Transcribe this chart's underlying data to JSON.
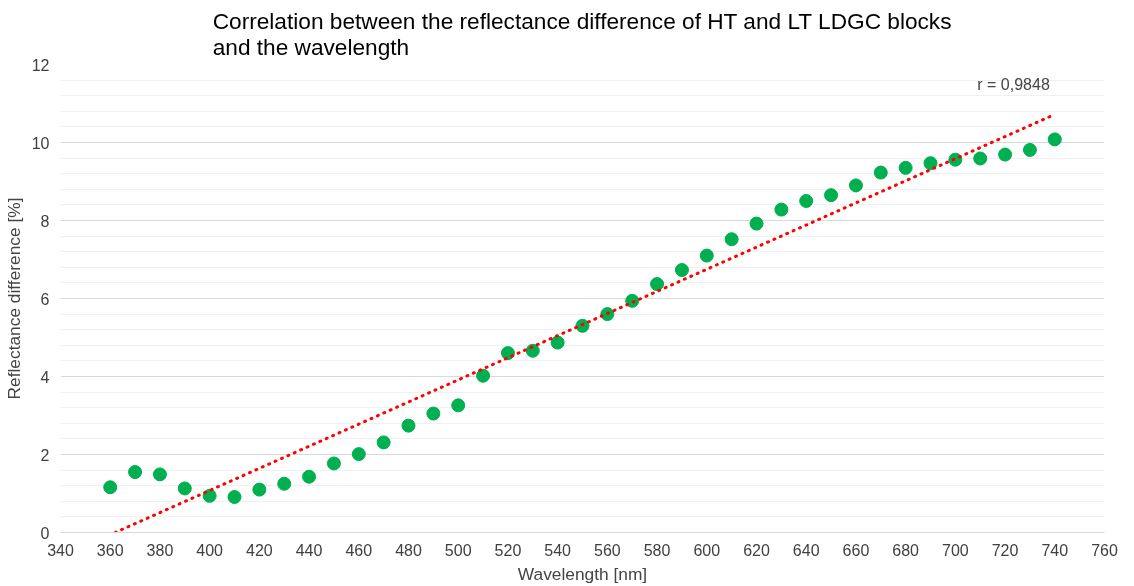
{
  "chart_data": {
    "type": "scatter",
    "title": "Correlation between the reflectance difference of HT and LT LDGC blocks and the wavelength",
    "xlabel": "Wavelength [nm]",
    "ylabel": "Reflectance difference [%]",
    "xlim": [
      340,
      760
    ],
    "xticks": [
      340,
      360,
      380,
      400,
      420,
      440,
      460,
      480,
      500,
      520,
      540,
      560,
      580,
      600,
      620,
      640,
      660,
      680,
      700,
      720,
      740,
      760
    ],
    "ylim": [
      0,
      12
    ],
    "yticks": [
      0,
      2,
      4,
      6,
      8,
      10,
      12
    ],
    "grid": "y",
    "series": [
      {
        "marker": "circle",
        "color": "#00b050",
        "x": [
          360,
          370,
          380,
          390,
          400,
          410,
          420,
          430,
          440,
          450,
          460,
          470,
          480,
          490,
          500,
          510,
          520,
          530,
          540,
          550,
          560,
          570,
          580,
          590,
          600,
          610,
          620,
          630,
          640,
          650,
          660,
          670,
          680,
          690,
          700,
          710,
          720,
          730,
          740
        ],
        "values": [
          1.16,
          1.55,
          1.49,
          1.13,
          0.94,
          0.91,
          1.1,
          1.25,
          1.43,
          1.77,
          2.01,
          2.31,
          2.74,
          3.05,
          3.26,
          4.02,
          4.6,
          4.66,
          4.87,
          5.3,
          5.6,
          5.94,
          6.37,
          6.73,
          7.1,
          7.52,
          7.92,
          8.28,
          8.5,
          8.65,
          8.9,
          9.23,
          9.35,
          9.47,
          9.56,
          9.59,
          9.69,
          9.81,
          10.08
        ]
      },
      {
        "type": "line",
        "color": "#ff0000",
        "line_style": "dotted",
        "x": [
          362,
          740
        ],
        "values": [
          0,
          10.72
        ]
      }
    ],
    "annotations": [
      "r = 0,9848"
    ]
  }
}
